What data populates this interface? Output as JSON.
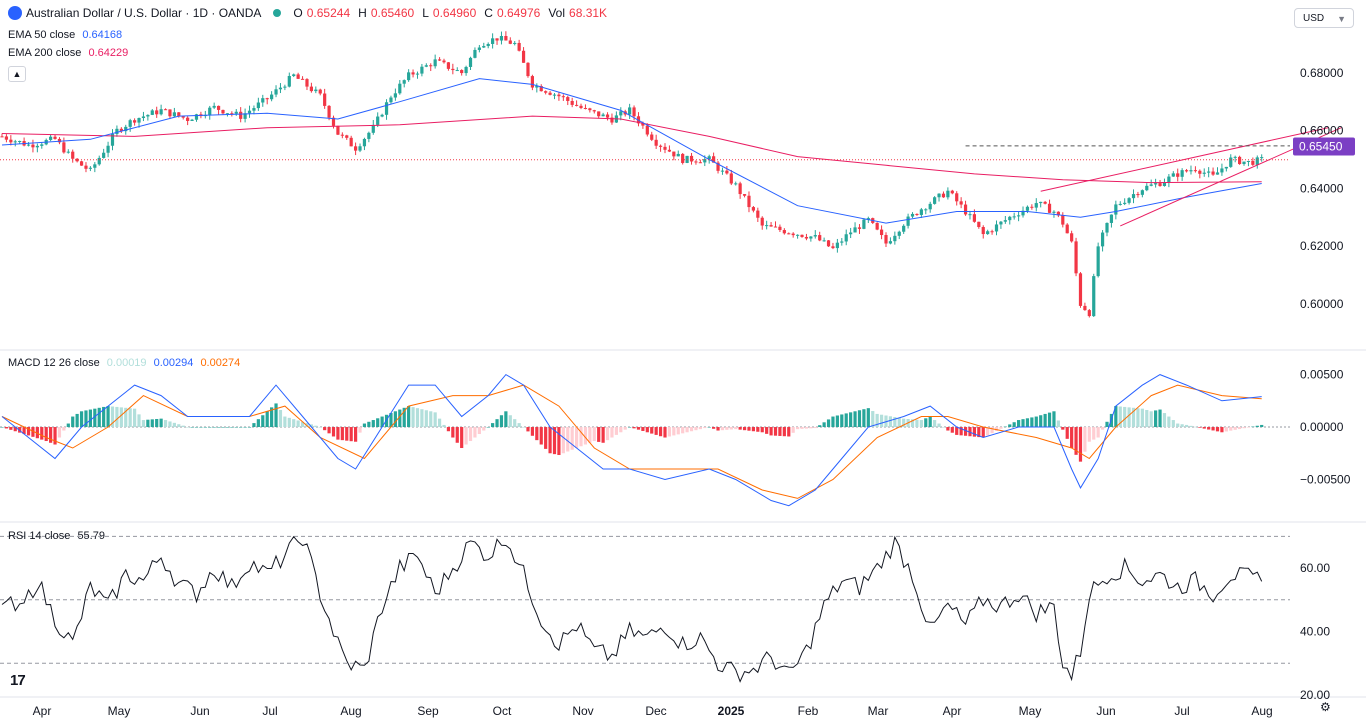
{
  "header": {
    "symbol_title": "Australian Dollar / U.S. Dollar · 1D · OANDA",
    "open_label": "O",
    "open_value": "0.65244",
    "high_label": "H",
    "high_value": "0.65460",
    "low_label": "L",
    "low_value": "0.64960",
    "close_label": "C",
    "close_value": "0.64976",
    "vol_label": "Vol",
    "vol_value": "68.31K",
    "up_color": "#26a69a",
    "down_color": "#f23645"
  },
  "indicators": {
    "ema50": {
      "label": "EMA 50 close",
      "value": "0.64168",
      "color": "#2962ff"
    },
    "ema200": {
      "label": "EMA 200 close",
      "value": "0.64229",
      "color": "#e91e63"
    },
    "collapse_icon": "chevron-up-icon"
  },
  "currency_selector": {
    "value": "USD"
  },
  "chart_data": [
    {
      "type": "candlestick",
      "title": "Australian Dollar / U.S. Dollar · 1D · OANDA",
      "ylim": [
        0.591,
        0.6955
      ],
      "y_ticks": [
        "0.68000",
        "0.66000",
        "0.64000",
        "0.62000",
        "0.60000"
      ],
      "current_price_label": "0.65450",
      "current_price_color": "#7b3fc4",
      "dashed_resistance": 0.6547,
      "dotted_reference": 0.6499,
      "x_ticks": [
        "Apr",
        "May",
        "Jun",
        "Jul",
        "Aug",
        "Sep",
        "Oct",
        "Nov",
        "Dec",
        "2025",
        "Feb",
        "Mar",
        "Apr",
        "May",
        "Jun",
        "Jul",
        "Aug"
      ],
      "price_close_path": [
        [
          0,
          0.658
        ],
        [
          6,
          0.655
        ],
        [
          12,
          0.657
        ],
        [
          16,
          0.65
        ],
        [
          20,
          0.646
        ],
        [
          26,
          0.66
        ],
        [
          30,
          0.664
        ],
        [
          36,
          0.667
        ],
        [
          42,
          0.664
        ],
        [
          48,
          0.668
        ],
        [
          54,
          0.665
        ],
        [
          60,
          0.671
        ],
        [
          66,
          0.679
        ],
        [
          72,
          0.672
        ],
        [
          76,
          0.659
        ],
        [
          80,
          0.654
        ],
        [
          84,
          0.661
        ],
        [
          88,
          0.672
        ],
        [
          92,
          0.679
        ],
        [
          98,
          0.684
        ],
        [
          104,
          0.68
        ],
        [
          108,
          0.69
        ],
        [
          112,
          0.692
        ],
        [
          116,
          0.69
        ],
        [
          120,
          0.676
        ],
        [
          126,
          0.672
        ],
        [
          132,
          0.667
        ],
        [
          138,
          0.664
        ],
        [
          142,
          0.667
        ],
        [
          148,
          0.656
        ],
        [
          154,
          0.65
        ],
        [
          160,
          0.65
        ],
        [
          166,
          0.641
        ],
        [
          172,
          0.627
        ],
        [
          178,
          0.625
        ],
        [
          184,
          0.623
        ],
        [
          188,
          0.619
        ],
        [
          192,
          0.625
        ],
        [
          196,
          0.629
        ],
        [
          200,
          0.621
        ],
        [
          204,
          0.628
        ],
        [
          208,
          0.633
        ],
        [
          214,
          0.639
        ],
        [
          218,
          0.632
        ],
        [
          222,
          0.624
        ],
        [
          228,
          0.63
        ],
        [
          234,
          0.635
        ],
        [
          238,
          0.632
        ],
        [
          240,
          0.628
        ],
        [
          242,
          0.621
        ],
        [
          244,
          0.6
        ],
        [
          246,
          0.597
        ],
        [
          248,
          0.62
        ],
        [
          252,
          0.634
        ],
        [
          258,
          0.64
        ],
        [
          262,
          0.642
        ],
        [
          266,
          0.645
        ],
        [
          270,
          0.647
        ],
        [
          274,
          0.644
        ],
        [
          278,
          0.65
        ],
        [
          282,
          0.649
        ],
        [
          285,
          0.6498
        ]
      ],
      "ema50_path": [
        [
          0,
          0.655
        ],
        [
          20,
          0.657
        ],
        [
          40,
          0.665
        ],
        [
          60,
          0.666
        ],
        [
          76,
          0.664
        ],
        [
          90,
          0.67
        ],
        [
          108,
          0.678
        ],
        [
          120,
          0.676
        ],
        [
          140,
          0.667
        ],
        [
          160,
          0.65
        ],
        [
          180,
          0.634
        ],
        [
          200,
          0.628
        ],
        [
          216,
          0.632
        ],
        [
          232,
          0.632
        ],
        [
          244,
          0.63
        ],
        [
          252,
          0.632
        ],
        [
          268,
          0.637
        ],
        [
          285,
          0.6417
        ]
      ],
      "ema200_path": [
        [
          0,
          0.659
        ],
        [
          30,
          0.658
        ],
        [
          60,
          0.661
        ],
        [
          90,
          0.662
        ],
        [
          120,
          0.665
        ],
        [
          140,
          0.664
        ],
        [
          160,
          0.658
        ],
        [
          180,
          0.651
        ],
        [
          200,
          0.648
        ],
        [
          220,
          0.645
        ],
        [
          240,
          0.643
        ],
        [
          260,
          0.642
        ],
        [
          285,
          0.6423
        ]
      ],
      "wedge_lines": [
        {
          "from": [
            235,
            0.639
          ],
          "to": [
            300,
            0.661
          ]
        },
        {
          "from": [
            253,
            0.627
          ],
          "to": [
            303,
            0.661
          ]
        }
      ]
    },
    {
      "type": "macd",
      "legend_label": "MACD 12 26 close",
      "histogram_value": "0.00019",
      "macd_value": "0.00294",
      "signal_value": "0.00274",
      "macd_color": "#2962ff",
      "signal_color": "#ff6d00",
      "ylim": [
        -0.0081,
        0.0062
      ],
      "y_ticks": [
        "0.00500",
        "0.00000",
        "−0.00500"
      ],
      "macd_path": [
        [
          0,
          0.001
        ],
        [
          6,
          -0.001
        ],
        [
          12,
          -0.003
        ],
        [
          18,
          0.0
        ],
        [
          24,
          0.002
        ],
        [
          30,
          0.004
        ],
        [
          36,
          0.003
        ],
        [
          42,
          0.001
        ],
        [
          50,
          0.001
        ],
        [
          56,
          0.001
        ],
        [
          62,
          0.004
        ],
        [
          68,
          0.001
        ],
        [
          76,
          -0.003
        ],
        [
          80,
          -0.004
        ],
        [
          86,
          0.0
        ],
        [
          92,
          0.004
        ],
        [
          98,
          0.004
        ],
        [
          104,
          0.001
        ],
        [
          110,
          0.003
        ],
        [
          114,
          0.005
        ],
        [
          118,
          0.004
        ],
        [
          124,
          0.0
        ],
        [
          130,
          -0.002
        ],
        [
          136,
          -0.004
        ],
        [
          142,
          -0.004
        ],
        [
          150,
          -0.005
        ],
        [
          160,
          -0.004
        ],
        [
          166,
          -0.005
        ],
        [
          174,
          -0.007
        ],
        [
          178,
          -0.0075
        ],
        [
          184,
          -0.006
        ],
        [
          190,
          -0.003
        ],
        [
          196,
          0.0
        ],
        [
          204,
          0.001
        ],
        [
          210,
          0.002
        ],
        [
          216,
          0.0
        ],
        [
          222,
          -0.001
        ],
        [
          230,
          0.0
        ],
        [
          238,
          0.0
        ],
        [
          242,
          -0.004
        ],
        [
          244,
          -0.0058
        ],
        [
          248,
          -0.003
        ],
        [
          252,
          0.002
        ],
        [
          258,
          0.004
        ],
        [
          262,
          0.005
        ],
        [
          268,
          0.004
        ],
        [
          276,
          0.0025
        ],
        [
          285,
          0.0029
        ]
      ],
      "signal_path": [
        [
          0,
          0.001
        ],
        [
          10,
          -0.001
        ],
        [
          16,
          -0.002
        ],
        [
          24,
          0.0
        ],
        [
          32,
          0.003
        ],
        [
          42,
          0.001
        ],
        [
          56,
          0.001
        ],
        [
          64,
          0.002
        ],
        [
          72,
          -0.001
        ],
        [
          82,
          -0.003
        ],
        [
          92,
          0.002
        ],
        [
          102,
          0.003
        ],
        [
          110,
          0.003
        ],
        [
          118,
          0.004
        ],
        [
          126,
          0.002
        ],
        [
          134,
          -0.002
        ],
        [
          142,
          -0.004
        ],
        [
          152,
          -0.004
        ],
        [
          162,
          -0.004
        ],
        [
          172,
          -0.006
        ],
        [
          180,
          -0.0068
        ],
        [
          188,
          -0.005
        ],
        [
          198,
          -0.001
        ],
        [
          208,
          0.001
        ],
        [
          214,
          0.001
        ],
        [
          222,
          0.0
        ],
        [
          234,
          -0.001
        ],
        [
          242,
          -0.002
        ],
        [
          246,
          -0.003
        ],
        [
          252,
          0.0
        ],
        [
          260,
          0.003
        ],
        [
          266,
          0.004
        ],
        [
          276,
          0.003
        ],
        [
          285,
          0.0027
        ]
      ]
    },
    {
      "type": "rsi",
      "legend_label": "RSI 14 close",
      "value": "55.79",
      "color": "#131722",
      "ylim": [
        20,
        72
      ],
      "y_ticks": [
        "60.00",
        "40.00",
        "20.00"
      ],
      "upper_band": 70,
      "mid_band": 50,
      "lower_band": 30,
      "rsi_path": [
        [
          0,
          50
        ],
        [
          4,
          46
        ],
        [
          8,
          56
        ],
        [
          12,
          44
        ],
        [
          16,
          36
        ],
        [
          20,
          54
        ],
        [
          24,
          48
        ],
        [
          28,
          58
        ],
        [
          32,
          56
        ],
        [
          36,
          64
        ],
        [
          40,
          55
        ],
        [
          44,
          52
        ],
        [
          48,
          60
        ],
        [
          52,
          54
        ],
        [
          56,
          62
        ],
        [
          60,
          58
        ],
        [
          64,
          64
        ],
        [
          68,
          70
        ],
        [
          72,
          52
        ],
        [
          76,
          36
        ],
        [
          78,
          30
        ],
        [
          82,
          28
        ],
        [
          86,
          48
        ],
        [
          90,
          60
        ],
        [
          94,
          64
        ],
        [
          98,
          52
        ],
        [
          102,
          60
        ],
        [
          106,
          68
        ],
        [
          110,
          64
        ],
        [
          114,
          70
        ],
        [
          118,
          58
        ],
        [
          122,
          44
        ],
        [
          126,
          36
        ],
        [
          130,
          42
        ],
        [
          134,
          34
        ],
        [
          138,
          32
        ],
        [
          142,
          40
        ],
        [
          146,
          38
        ],
        [
          150,
          42
        ],
        [
          154,
          36
        ],
        [
          158,
          38
        ],
        [
          162,
          30
        ],
        [
          166,
          27
        ],
        [
          170,
          28
        ],
        [
          174,
          32
        ],
        [
          178,
          26
        ],
        [
          182,
          34
        ],
        [
          186,
          48
        ],
        [
          190,
          56
        ],
        [
          194,
          54
        ],
        [
          198,
          60
        ],
        [
          202,
          68
        ],
        [
          206,
          58
        ],
        [
          210,
          40
        ],
        [
          214,
          48
        ],
        [
          218,
          42
        ],
        [
          222,
          50
        ],
        [
          226,
          48
        ],
        [
          230,
          52
        ],
        [
          234,
          46
        ],
        [
          238,
          48
        ],
        [
          240,
          30
        ],
        [
          242,
          26
        ],
        [
          244,
          34
        ],
        [
          246,
          52
        ],
        [
          250,
          58
        ],
        [
          254,
          60
        ],
        [
          258,
          56
        ],
        [
          262,
          58
        ],
        [
          266,
          54
        ],
        [
          270,
          56
        ],
        [
          274,
          52
        ],
        [
          278,
          58
        ],
        [
          282,
          57
        ],
        [
          285,
          55.8
        ]
      ]
    }
  ],
  "branding": {
    "logo_text": "17"
  },
  "settings_icon": "gear-icon"
}
